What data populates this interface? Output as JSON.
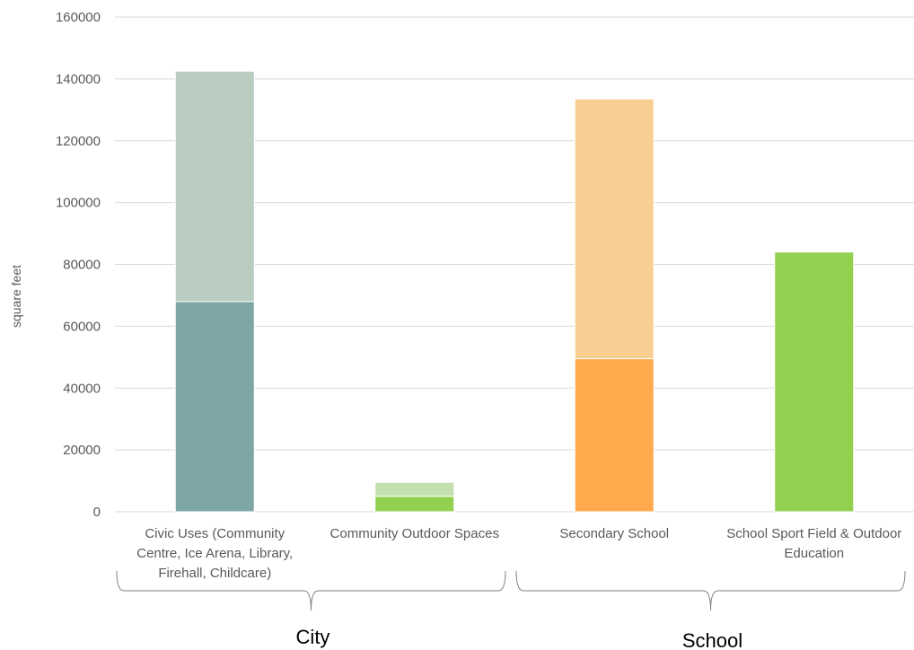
{
  "chart_data": {
    "type": "bar",
    "stacked": true,
    "ylabel": "square feet",
    "xlabel": "",
    "ylim": [
      0,
      160000
    ],
    "yticks": [
      0,
      20000,
      40000,
      60000,
      80000,
      100000,
      120000,
      140000,
      160000
    ],
    "grid": true,
    "categories": [
      "Civic Uses (Community Centre, Ice Arena, Library, Firehall, Childcare)",
      "Community Outdoor Spaces",
      "Secondary School",
      "School Sport Field & Outdoor Education"
    ],
    "category_label_lines": [
      [
        "Civic Uses (Community",
        "Centre, Ice Arena, Library,",
        "Firehall, Childcare)"
      ],
      [
        "Community Outdoor Spaces"
      ],
      [
        "Secondary School"
      ],
      [
        "School Sport Field & Outdoor",
        "Education"
      ]
    ],
    "bars": [
      {
        "segments": [
          {
            "value": 68000,
            "color": "#7EA6A6"
          },
          {
            "value": 74500,
            "color": "#B8CCC0"
          }
        ]
      },
      {
        "segments": [
          {
            "value": 5000,
            "color": "#92D050"
          },
          {
            "value": 4500,
            "color": "#C4E0AE"
          }
        ]
      },
      {
        "segments": [
          {
            "value": 49500,
            "color": "#FFAA4C"
          },
          {
            "value": 84000,
            "color": "#F8CF92"
          }
        ]
      },
      {
        "segments": [
          {
            "value": 84000,
            "color": "#92D050"
          }
        ]
      }
    ],
    "groups": [
      {
        "label": "City",
        "categories": [
          0,
          1
        ]
      },
      {
        "label": "School",
        "categories": [
          2,
          3
        ]
      }
    ],
    "colors": {
      "grid": "#D9D9D9",
      "text": "#595959",
      "brace": "#7F7F7F"
    }
  }
}
